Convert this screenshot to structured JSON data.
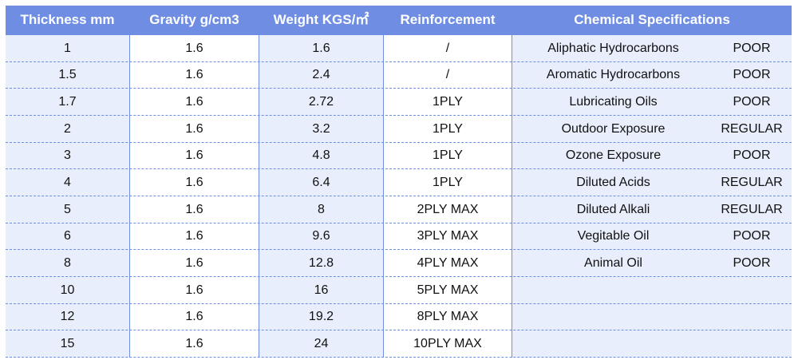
{
  "columns": [
    "Thickness mm",
    "Gravity g/cm3",
    "Weight KGS/㎡",
    "Reinforcement",
    "Chemical Specifications"
  ],
  "rows": [
    {
      "thickness": "1",
      "gravity": "1.6",
      "weight": "1.6",
      "reinforcement": "/",
      "chemical": "Aliphatic Hydrocarbons",
      "rating": "POOR"
    },
    {
      "thickness": "1.5",
      "gravity": "1.6",
      "weight": "2.4",
      "reinforcement": "/",
      "chemical": "Aromatic Hydrocarbons",
      "rating": "POOR"
    },
    {
      "thickness": "1.7",
      "gravity": "1.6",
      "weight": "2.72",
      "reinforcement": "1PLY",
      "chemical": "Lubricating Oils",
      "rating": "POOR"
    },
    {
      "thickness": "2",
      "gravity": "1.6",
      "weight": "3.2",
      "reinforcement": "1PLY",
      "chemical": "Outdoor Exposure",
      "rating": "REGULAR"
    },
    {
      "thickness": "3",
      "gravity": "1.6",
      "weight": "4.8",
      "reinforcement": "1PLY",
      "chemical": "Ozone Exposure",
      "rating": "POOR"
    },
    {
      "thickness": "4",
      "gravity": "1.6",
      "weight": "6.4",
      "reinforcement": "1PLY",
      "chemical": "Diluted Acids",
      "rating": "REGULAR"
    },
    {
      "thickness": "5",
      "gravity": "1.6",
      "weight": "8",
      "reinforcement": "2PLY MAX",
      "chemical": "Diluted Alkali",
      "rating": "REGULAR"
    },
    {
      "thickness": "6",
      "gravity": "1.6",
      "weight": "9.6",
      "reinforcement": "3PLY MAX",
      "chemical": "Vegitable Oil",
      "rating": "POOR"
    },
    {
      "thickness": "8",
      "gravity": "1.6",
      "weight": "12.8",
      "reinforcement": "4PLY MAX",
      "chemical": "Animal Oil",
      "rating": "POOR"
    },
    {
      "thickness": "10",
      "gravity": "1.6",
      "weight": "16",
      "reinforcement": "5PLY MAX",
      "chemical": "",
      "rating": ""
    },
    {
      "thickness": "12",
      "gravity": "1.6",
      "weight": "19.2",
      "reinforcement": "8PLY MAX",
      "chemical": "",
      "rating": ""
    },
    {
      "thickness": "15",
      "gravity": "1.6",
      "weight": "24",
      "reinforcement": "10PLY MAX",
      "chemical": "",
      "rating": ""
    }
  ],
  "colors": {
    "header_bg": "#6f8ee3",
    "header_text": "#ffffff",
    "stripe_blue": "#e8eefb",
    "stripe_white": "#ffffff",
    "divider": "#6f8ee3"
  }
}
